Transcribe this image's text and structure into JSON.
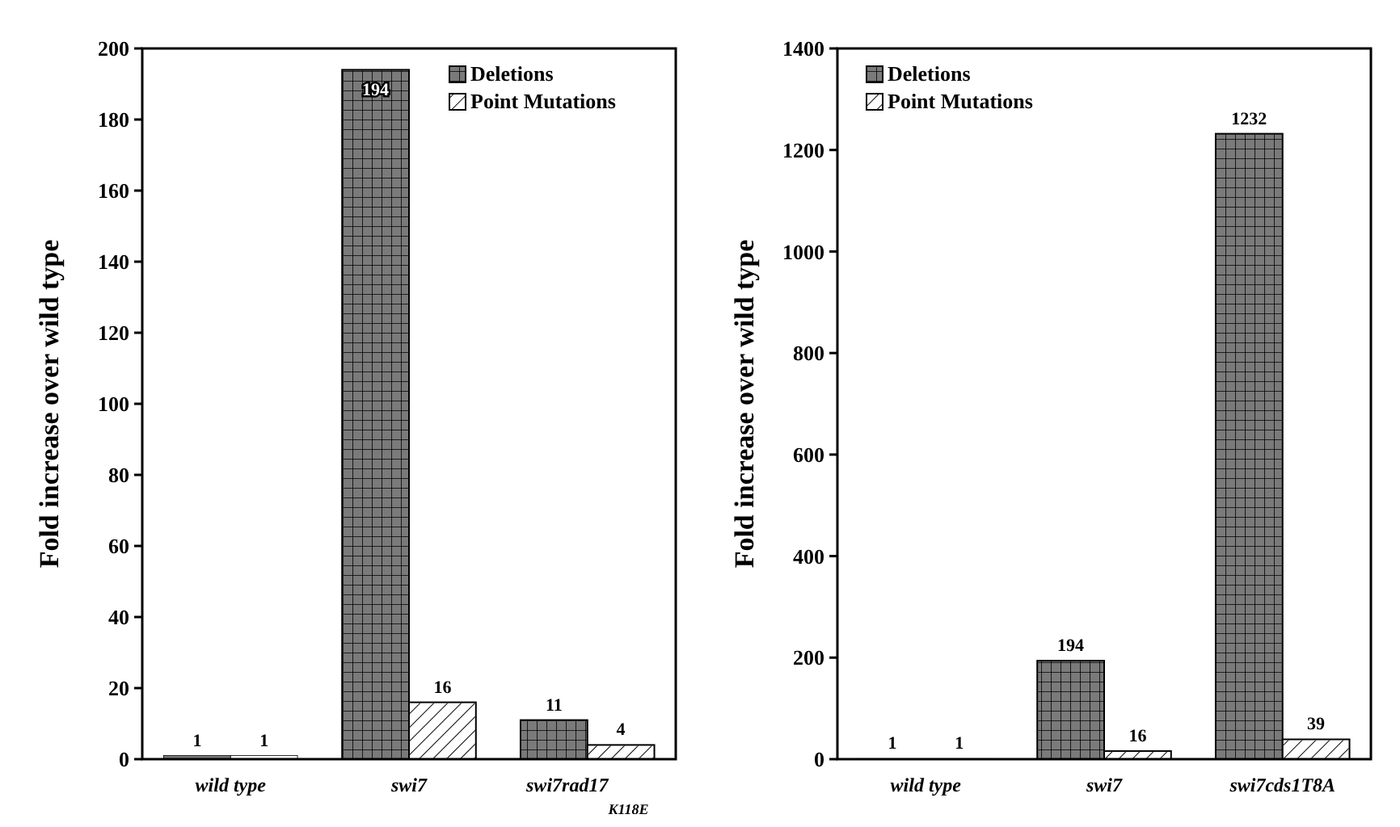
{
  "chart_data": [
    {
      "type": "bar",
      "ylabel": "Fold increase over wild type",
      "categories": [
        "wild type",
        "swi7",
        "swi7rad17$_{K118E}$"
      ],
      "series": [
        {
          "name": "Deletions",
          "color": "#7a7a7a",
          "values": [
            1,
            194,
            11
          ]
        },
        {
          "name": "Point Mutations",
          "color": "#ffffff",
          "values": [
            1,
            16,
            4
          ]
        }
      ],
      "ylim": [
        0,
        200
      ],
      "yticks": [
        0,
        20,
        40,
        60,
        80,
        100,
        120,
        140,
        160,
        180,
        200
      ],
      "data_labels": true,
      "legend": "top right",
      "grid": false
    },
    {
      "type": "bar",
      "ylabel": "Fold increase over wild type",
      "categories": [
        "wild type",
        "swi7",
        "swi7cds1T8A"
      ],
      "series": [
        {
          "name": "Deletions",
          "color": "#7a7a7a",
          "values": [
            1,
            194,
            1232
          ]
        },
        {
          "name": "Point Mutations",
          "color": "#ffffff",
          "values": [
            1,
            16,
            39
          ]
        }
      ],
      "ylim": [
        0,
        1400
      ],
      "yticks": [
        0,
        200,
        400,
        600,
        800,
        1000,
        1200,
        1400
      ],
      "data_labels": true,
      "legend": "top left",
      "grid": false
    }
  ]
}
